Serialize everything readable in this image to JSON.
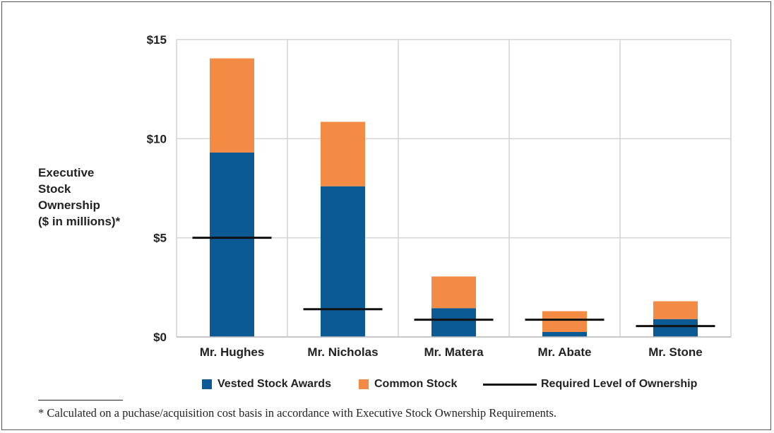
{
  "chart_data": {
    "type": "bar",
    "stacked": true,
    "ylabel": "Executive Stock Ownership ($ in millions)*",
    "ylabel_lines": [
      "Executive",
      "Stock",
      "Ownership",
      "($ in millions)*"
    ],
    "ylim": [
      0,
      15
    ],
    "yticks": [
      0,
      5,
      10,
      15
    ],
    "ytick_labels": [
      "$0",
      "$5",
      "$10",
      "$15"
    ],
    "categories": [
      "Mr. Hughes",
      "Mr. Nicholas",
      "Mr. Matera",
      "Mr. Abate",
      "Mr. Stone"
    ],
    "series": [
      {
        "name": "Vested Stock Awards",
        "type": "bar",
        "color": "#0b5a94",
        "values": [
          9.3,
          7.6,
          1.45,
          0.25,
          0.9
        ]
      },
      {
        "name": "Common Stock",
        "type": "bar",
        "color": "#f48b45",
        "values": [
          4.75,
          3.25,
          1.6,
          1.05,
          0.9
        ]
      },
      {
        "name": "Required Level of Ownership",
        "type": "line-marker",
        "color": "#111111",
        "values": [
          5.0,
          1.4,
          0.87,
          0.87,
          0.55
        ]
      }
    ],
    "grid": true,
    "legend_position": "bottom"
  },
  "footnote": "* Calculated on a puchase/acquisition cost basis in accordance with Executive Stock Ownership Requirements."
}
